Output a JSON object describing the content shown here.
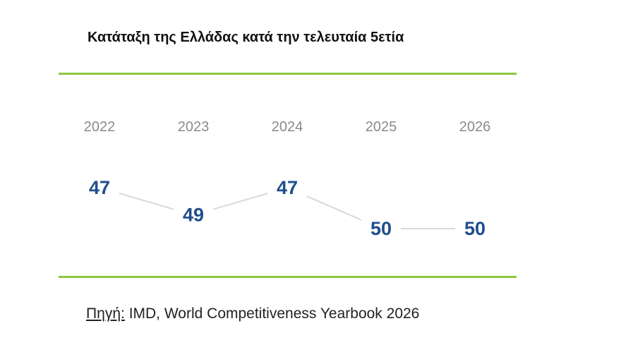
{
  "title": "Κατάταξη της Ελλάδας κατά την τελευταία 5ετία",
  "source": {
    "label": "Πηγή:",
    "text": " IMD, World Competitiveness Yearbook 2026"
  },
  "colors": {
    "rule": "#8cc63f",
    "value_text": "#1f4e8c",
    "year_text": "#8a8a8a",
    "connector": "#d9d9d9"
  },
  "chart_data": {
    "type": "line",
    "title": "Κατάταξη της Ελλάδας κατά την τελευταία 5ετία",
    "categories": [
      "2022",
      "2023",
      "2024",
      "2025",
      "2026"
    ],
    "series": [
      {
        "values": [
          47,
          49,
          47,
          50,
          50
        ]
      }
    ],
    "xlabel": "",
    "ylabel": "",
    "y_inverted": true,
    "grid": false,
    "legend": "none"
  }
}
